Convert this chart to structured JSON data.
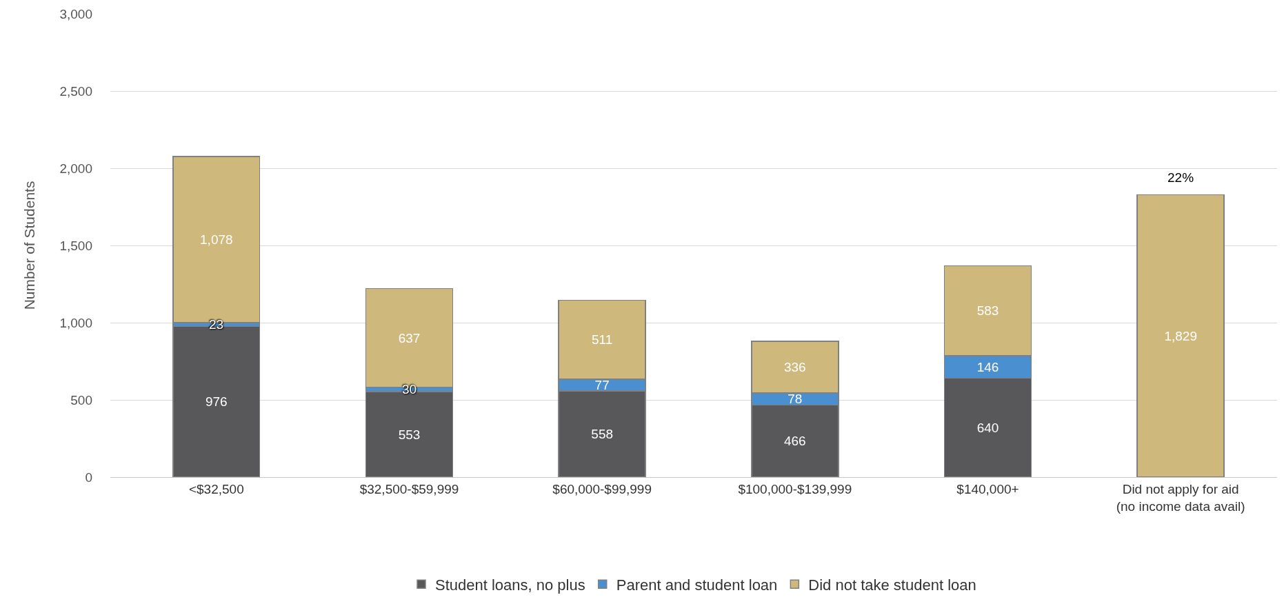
{
  "chart_data": {
    "type": "bar",
    "stacked": true,
    "ylabel": "Number of Students",
    "categories": [
      "<$32,500",
      "$32,500-$59,999",
      "$60,000-$99,999",
      "$100,000-$139,999",
      "$140,000+",
      "Did not apply for aid (no income data avail)"
    ],
    "series": [
      {
        "name": "Student loans, no plus",
        "color": "#58585b",
        "values": [
          976,
          553,
          558,
          466,
          640,
          null
        ],
        "value_labels": [
          "976",
          "553",
          "558",
          "466",
          "640",
          null
        ]
      },
      {
        "name": "Parent and student loan",
        "color": "#4a8fd0",
        "values": [
          23,
          30,
          77,
          78,
          146,
          null
        ],
        "value_labels": [
          "23",
          "30",
          "77",
          "78",
          "146",
          null
        ]
      },
      {
        "name": "Did not take student loan",
        "color": "#cfb87c",
        "values": [
          1078,
          637,
          511,
          336,
          583,
          1829
        ],
        "value_labels": [
          "1,078",
          "637",
          "511",
          "336",
          "583",
          "1,829"
        ]
      }
    ],
    "ylim": [
      0,
      3000
    ],
    "yticks": [
      0,
      {
        "value": 500,
        "label": "500"
      },
      {
        "value": 1000,
        "label": "1,000"
      },
      {
        "value": 1500,
        "label": "1,500"
      },
      {
        "value": 2000,
        "label": "2,000"
      },
      {
        "value": 2500,
        "label": "2,500"
      },
      {
        "value": 3000,
        "label": "3,000"
      }
    ],
    "annotations": [
      {
        "text": "22%",
        "x": "Did not apply for aid (no income data avail)",
        "y": 1829
      }
    ],
    "grid": "y",
    "legend": "bottom"
  }
}
